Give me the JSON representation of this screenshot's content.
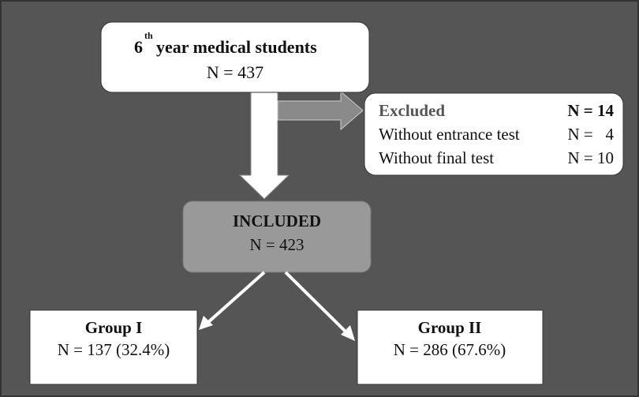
{
  "top": {
    "ordinal": "6",
    "suffix": "th",
    "label": "year medical students",
    "count": "N = 437"
  },
  "excluded": {
    "title": "Excluded",
    "title_count": "N = 14",
    "rows": [
      [
        "Without entrance test",
        "N =   4"
      ],
      [
        "Without final test",
        "N = 10"
      ]
    ]
  },
  "included": {
    "title": "INCLUDED",
    "count": "N = 423"
  },
  "groups": [
    {
      "title": "Group I",
      "count": "N = 137 (32.4%)"
    },
    {
      "title": "Group II",
      "count": "N = 286 (67.6%)"
    }
  ]
}
